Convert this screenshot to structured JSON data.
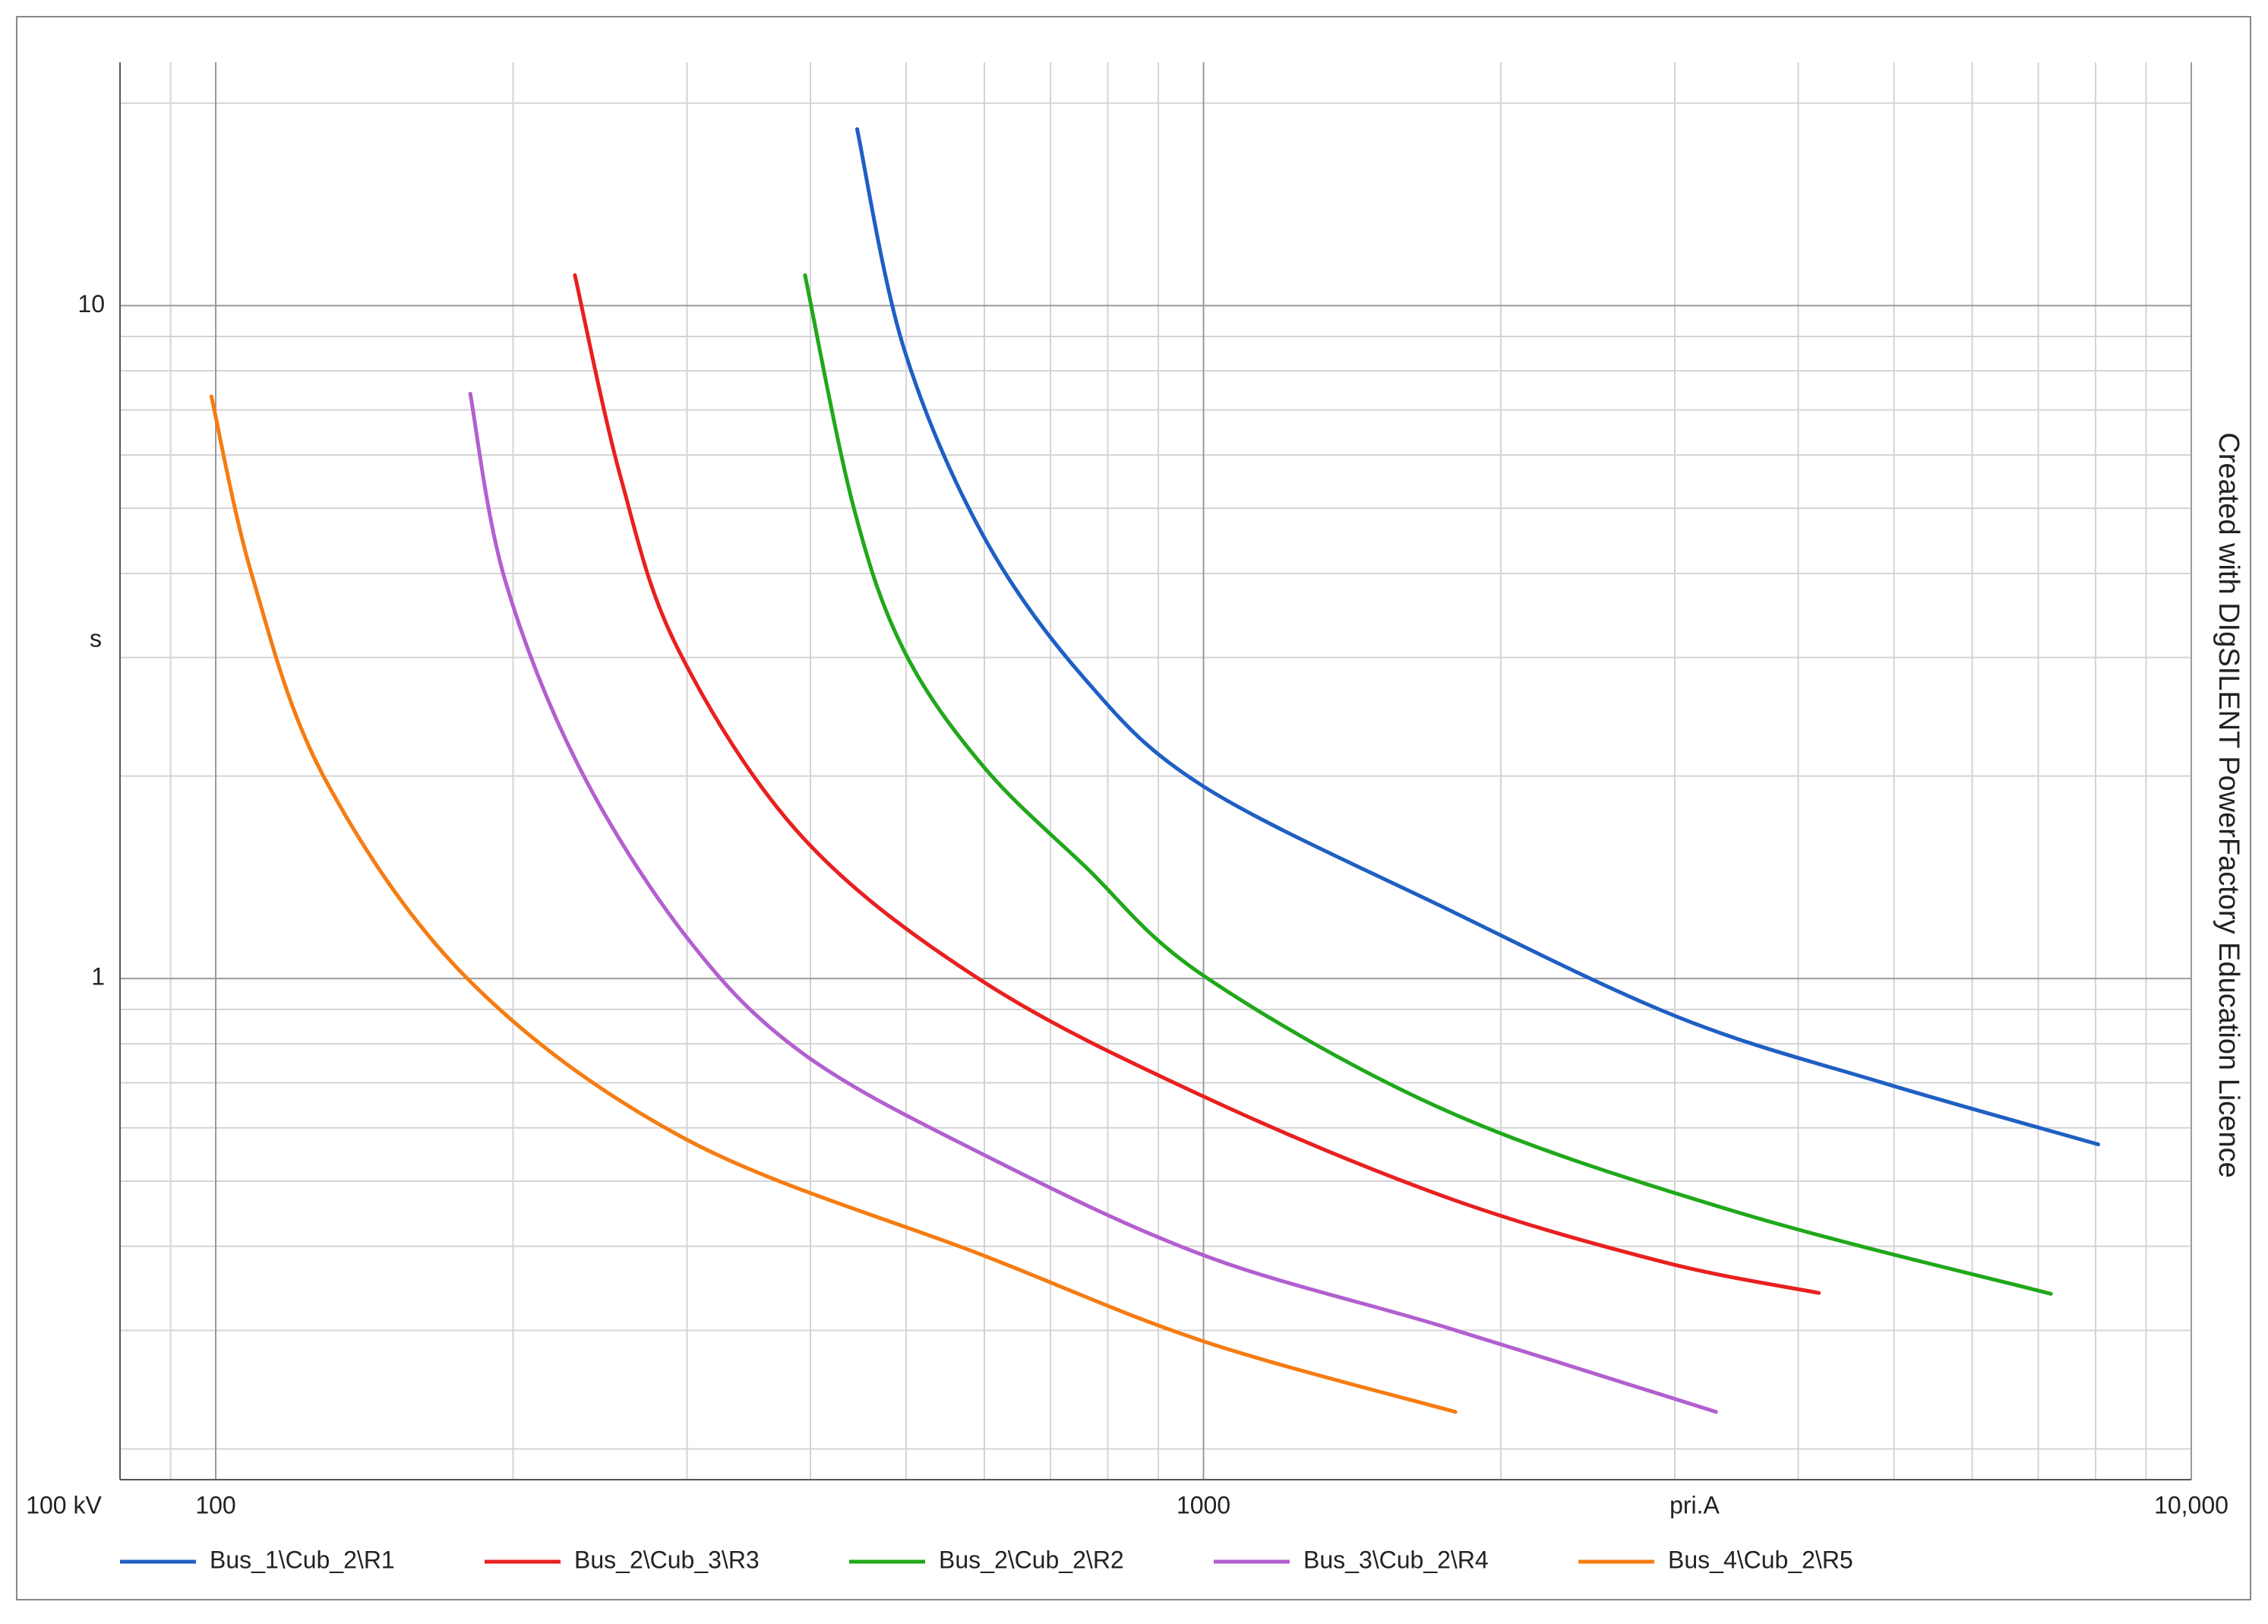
{
  "chart_data": {
    "type": "line",
    "xscale": "log",
    "yscale": "log",
    "grid": true,
    "xlabel": "pri.A",
    "ylabel": "s",
    "x_reference_label": "100 kV",
    "watermark": "Created with DIgSILENT PowerFactory Education Licence",
    "xlim": [
      80,
      10000
    ],
    "ylim": [
      0.18,
      23
    ],
    "xticks": [
      100,
      1000,
      {
        "value": 10000,
        "label": "10,000"
      }
    ],
    "yticks": [
      1,
      10
    ],
    "xminorticks": [
      90,
      200,
      300,
      400,
      500,
      600,
      700,
      800,
      900,
      2000,
      3000,
      4000,
      5000,
      6000,
      7000,
      8000,
      9000
    ],
    "yminorticks": [
      0.2,
      0.3,
      0.4,
      0.5,
      0.6,
      0.7,
      0.8,
      0.9,
      2,
      3,
      4,
      5,
      6,
      7,
      8,
      9,
      20
    ],
    "legend": "bottom",
    "series": [
      {
        "name": "Bus_1\\Cub_2\\R1",
        "color": "#1f5fc4",
        "x": [
          446,
          497,
          598,
          758,
          1000,
          1762,
          3025,
          4856,
          8050
        ],
        "values": [
          18.3,
          8.67,
          4.56,
          2.79,
          1.93,
          1.27,
          0.876,
          0.701,
          0.567
        ]
      },
      {
        "name": "Bus_2\\Cub_3\\R3",
        "color": "#e8201f",
        "x": [
          231,
          257,
          294,
          393,
          598,
          1000,
          1762,
          2924,
          4197
        ],
        "values": [
          11.1,
          5.56,
          3.08,
          1.62,
          0.99,
          0.668,
          0.473,
          0.379,
          0.341
        ]
      },
      {
        "name": "Bus_2\\Cub_2\\R2",
        "color": "#20a81a",
        "x": [
          395,
          442,
          497,
          598,
          758,
          1000,
          1762,
          3464,
          7208
        ],
        "values": [
          11.1,
          5.04,
          3.08,
          2.07,
          1.47,
          1.01,
          0.636,
          0.45,
          0.34
        ]
      },
      {
        "name": "Bus_3\\Cub_2\\R4",
        "color": "#b25fcf",
        "x": [
          181,
          196,
          233,
          300,
          393,
          598,
          1000,
          1762,
          3303
        ],
        "values": [
          7.4,
          3.94,
          2.07,
          1.15,
          0.774,
          0.548,
          0.388,
          0.303,
          0.227
        ]
      },
      {
        "name": "Bus_4\\Cub_2\\R5",
        "color": "#f57c12",
        "x": [
          99,
          109,
          129,
          181,
          300,
          598,
          1000,
          1799
        ],
        "values": [
          7.33,
          3.94,
          1.98,
          0.99,
          0.576,
          0.388,
          0.289,
          0.227
        ]
      }
    ]
  }
}
